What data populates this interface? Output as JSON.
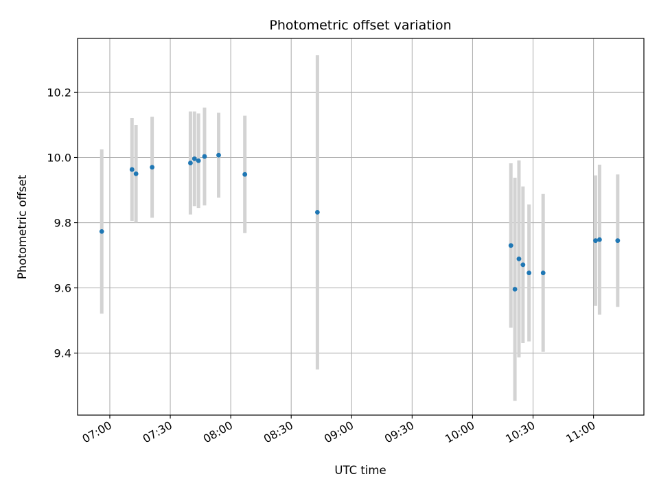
{
  "chart_data": {
    "type": "scatter",
    "title": "Photometric offset variation",
    "xlabel": "UTC time",
    "ylabel": "Photometric offset",
    "x_ticks": [
      "07:00",
      "07:30",
      "08:00",
      "08:30",
      "09:00",
      "09:30",
      "10:00",
      "10:30",
      "11:00"
    ],
    "y_ticks": [
      "9.4",
      "9.6",
      "9.8",
      "10.0",
      "10.2"
    ],
    "xlim": [
      "06:44",
      "11:25"
    ],
    "ylim": [
      9.21,
      10.365
    ],
    "grid": true,
    "colors": {
      "marker": "#1f77b4",
      "errorbar": "#d3d3d3",
      "grid": "#b0b0b0"
    },
    "points": [
      {
        "x": "06:56",
        "y": 9.773,
        "err": 0.252
      },
      {
        "x": "07:11",
        "y": 9.963,
        "err": 0.158
      },
      {
        "x": "07:13",
        "y": 9.95,
        "err": 0.15
      },
      {
        "x": "07:21",
        "y": 9.97,
        "err": 0.155
      },
      {
        "x": "07:40",
        "y": 9.983,
        "err": 0.158
      },
      {
        "x": "07:42",
        "y": 9.996,
        "err": 0.145
      },
      {
        "x": "07:44",
        "y": 9.99,
        "err": 0.145
      },
      {
        "x": "07:47",
        "y": 10.003,
        "err": 0.15
      },
      {
        "x": "07:54",
        "y": 10.007,
        "err": 0.13
      },
      {
        "x": "08:07",
        "y": 9.948,
        "err": 0.18
      },
      {
        "x": "08:43",
        "y": 9.832,
        "err": 0.482
      },
      {
        "x": "10:19",
        "y": 9.73,
        "err": 0.252
      },
      {
        "x": "10:21",
        "y": 9.596,
        "err": 0.342
      },
      {
        "x": "10:23",
        "y": 9.689,
        "err": 0.302
      },
      {
        "x": "10:25",
        "y": 9.671,
        "err": 0.24
      },
      {
        "x": "10:28",
        "y": 9.646,
        "err": 0.21
      },
      {
        "x": "10:35",
        "y": 9.646,
        "err": 0.242
      },
      {
        "x": "11:01",
        "y": 9.745,
        "err": 0.2
      },
      {
        "x": "11:03",
        "y": 9.748,
        "err": 0.23
      },
      {
        "x": "11:12",
        "y": 9.745,
        "err": 0.203
      }
    ]
  }
}
